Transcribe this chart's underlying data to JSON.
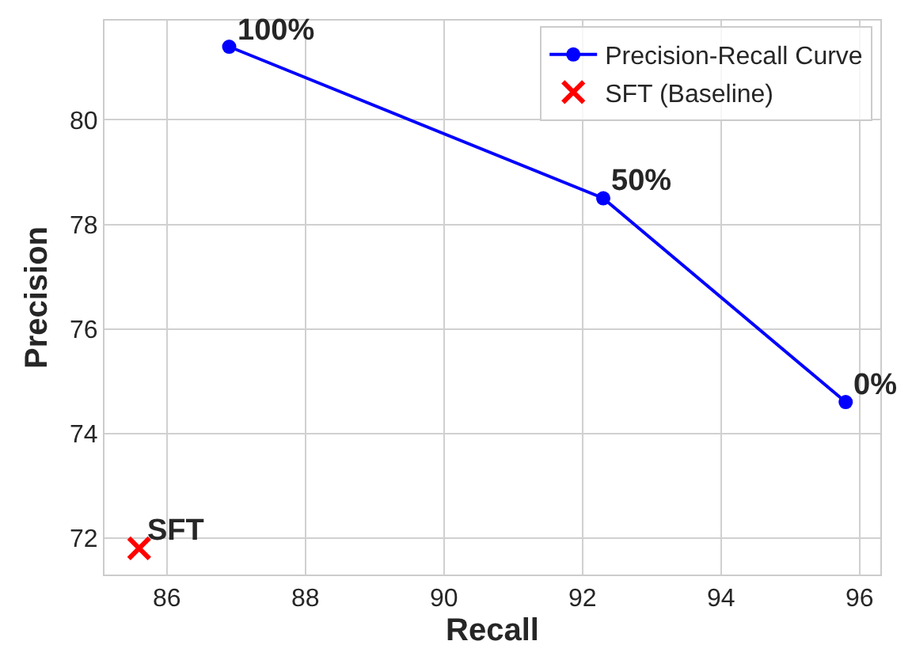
{
  "chart_data": {
    "type": "line",
    "xlabel": "Recall",
    "ylabel": "Precision",
    "xlim": [
      85.1,
      96.3
    ],
    "ylim": [
      71.3,
      81.9
    ],
    "xticks": [
      86,
      88,
      90,
      92,
      94,
      96
    ],
    "yticks": [
      72,
      74,
      76,
      78,
      80
    ],
    "grid": true,
    "legend": "top right",
    "series": [
      {
        "name": "Precision-Recall Curve",
        "color": "#0000ff",
        "marker": "circle",
        "line_style": "solid",
        "x": [
          86.9,
          92.3,
          95.8
        ],
        "values": [
          81.4,
          78.5,
          74.6
        ]
      },
      {
        "name": "SFT (Baseline)",
        "type": "scatter",
        "color": "#ff0000",
        "marker": "cross",
        "x": [
          85.6
        ],
        "values": [
          71.8
        ]
      }
    ],
    "annotations": [
      {
        "text": "100%",
        "x": 86.9,
        "y": 81.4
      },
      {
        "text": "50%",
        "x": 92.3,
        "y": 78.5
      },
      {
        "text": "0%",
        "x": 95.8,
        "y": 74.6
      },
      {
        "text": "SFT",
        "x": 85.6,
        "y": 71.8
      }
    ]
  }
}
